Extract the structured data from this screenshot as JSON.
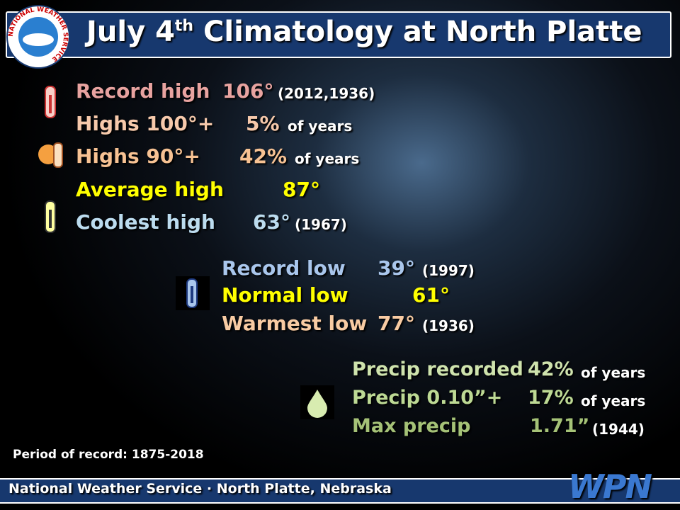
{
  "header": {
    "title_pre": "July 4",
    "title_sup": "th",
    "title_post": "Climatology at North Platte",
    "logo_text": "NATIONAL WEATHER SERVICE"
  },
  "highs": [
    {
      "label": "Record high",
      "value": "106°",
      "note": "(2012,1936)",
      "color": "#e8a3a0"
    },
    {
      "label": "Highs 100°+",
      "value": "5%",
      "note": "of years",
      "color": "#f6c9ab"
    },
    {
      "label": "Highs 90°+",
      "value": "42%",
      "note": "of years",
      "color": "#f7c293"
    },
    {
      "label": "Average high",
      "value": "87°",
      "note": null,
      "color": "#ffff00"
    },
    {
      "label": "Coolest high",
      "value": "63°",
      "note": "(1967)",
      "color": "#bcdcef"
    }
  ],
  "lows": [
    {
      "label": "Record low",
      "value": "39°",
      "note": "(1997)",
      "color": "#a9c6ec"
    },
    {
      "label": "Normal low",
      "value": "61°",
      "note": null,
      "color": "#ffff00"
    },
    {
      "label": "Warmest low",
      "value": "77°",
      "note": "(1936)",
      "color": "#f8cba3"
    }
  ],
  "precip": [
    {
      "label": "Precip recorded",
      "value": "42%",
      "note": "of years",
      "color": "#cfe3ad"
    },
    {
      "label": "Precip 0.10”+",
      "value": "17%",
      "note": "of years",
      "color": "#bdd994"
    },
    {
      "label": "Max precip",
      "value": "1.71”",
      "note": "(1944)",
      "color": "#a5c277"
    }
  ],
  "footer": {
    "period": "Period of record: 1875-2018",
    "office": "National Weather Service · North Platte, Nebraska",
    "logo": "WPN"
  }
}
